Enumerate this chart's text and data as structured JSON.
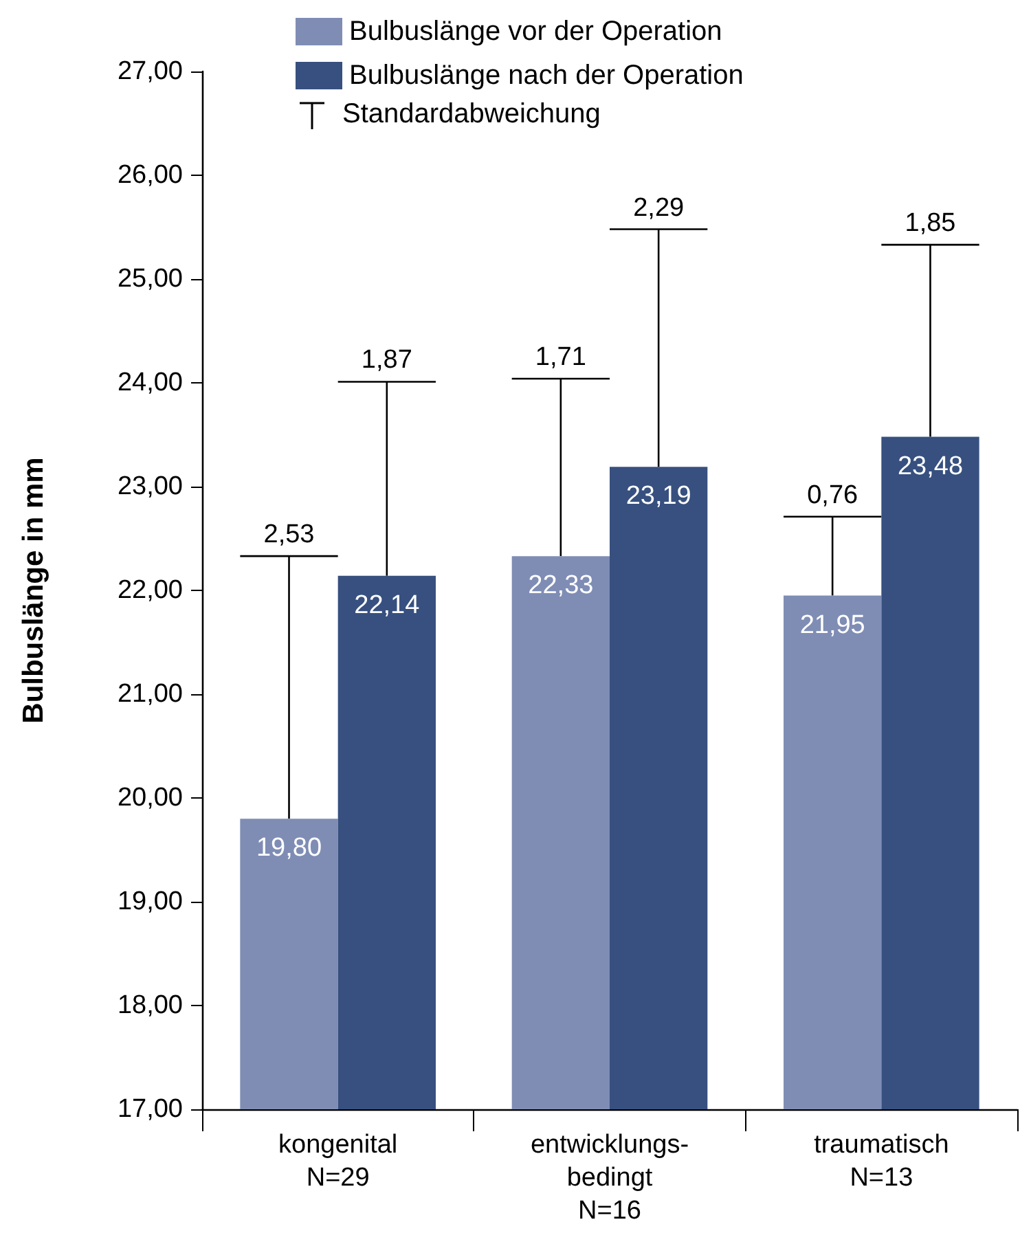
{
  "chart_data": {
    "type": "bar",
    "ylabel": "Bulbuslänge in mm",
    "categories": [
      "kongenital\nN=29",
      "entwicklungs-\nbedingt\nN=16",
      "traumatisch\nN=13"
    ],
    "series": [
      {
        "name": "Bulbuslänge vor der Operation",
        "color": "#7f8db5",
        "values": [
          19.8,
          22.33,
          21.95
        ],
        "errors": [
          [
            19.8,
            22.33
          ],
          [
            22.33,
            24.04
          ],
          [
            21.95,
            22.71
          ]
        ],
        "value_labels": [
          "19,80",
          "22,33",
          "21,95"
        ]
      },
      {
        "name": "Bulbuslänge nach der Operation",
        "color": "#37507f",
        "values": [
          22.14,
          23.19,
          23.48
        ],
        "errors": [
          [
            22.14,
            24.01
          ],
          [
            23.19,
            25.48
          ],
          [
            23.48,
            25.33
          ]
        ],
        "value_labels": [
          "22,14",
          "23,19",
          "23,48"
        ]
      }
    ],
    "annotations": [
      "Standardabweichung",
      "2,53",
      "1,87",
      "1,71",
      "2,29",
      "0,76",
      "1,85"
    ],
    "ylim": [
      17,
      27
    ],
    "yticks": [
      {
        "value": 17,
        "label": "17,00"
      },
      {
        "value": 18,
        "label": "18,00"
      },
      {
        "value": 19,
        "label": "19,00"
      },
      {
        "value": 20,
        "label": "20,00"
      },
      {
        "value": 21,
        "label": "21,00"
      },
      {
        "value": 22,
        "label": "22,00"
      },
      {
        "value": 23,
        "label": "23,00"
      },
      {
        "value": 24,
        "label": "24,00"
      },
      {
        "value": 25,
        "label": "25,00"
      },
      {
        "value": 26,
        "label": "26,00"
      },
      {
        "value": 27,
        "label": "27,00"
      }
    ],
    "grid": false,
    "legend": "top"
  }
}
